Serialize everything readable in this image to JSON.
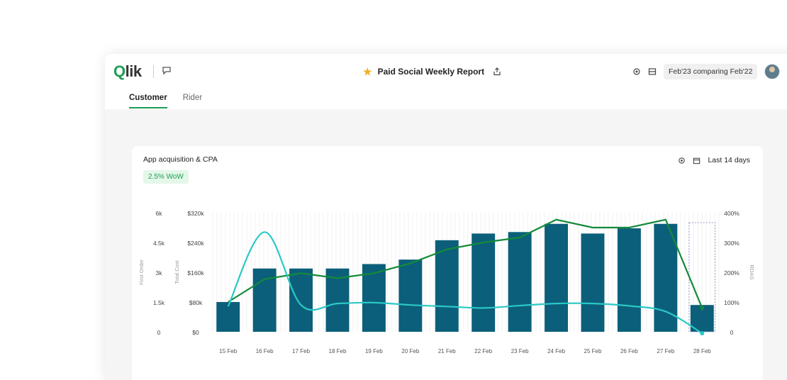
{
  "app": {
    "logo_text": "Qlik",
    "report_title": "Paid Social Weekly Report",
    "comparison": "Feb'23 comparing Feb'22",
    "tabs": [
      {
        "label": "Customer",
        "active": true
      },
      {
        "label": "Rider",
        "active": false
      }
    ]
  },
  "card": {
    "title": "App acquisition & CPA",
    "badge": "2.5% WoW",
    "range_label": "Last 14 days"
  },
  "colors": {
    "accent_green": "#1f9d55",
    "bar_teal": "#0c5f7a",
    "line_cyan": "#2ac8c6",
    "line_green": "#148a3a",
    "star": "#f2b01e"
  },
  "chart_data": {
    "type": "bar",
    "categories": [
      "15 Feb",
      "16 Feb",
      "17 Feb",
      "18 Feb",
      "19 Feb",
      "20 Feb",
      "21 Feb",
      "22 Feb",
      "23 Feb",
      "24 Feb",
      "25 Feb",
      "26 Feb",
      "27 Feb",
      "28 Feb"
    ],
    "left_axis_1": {
      "title": "First Order",
      "ticks": [
        "6k",
        "4.5k",
        "3k",
        "1.5k",
        "0"
      ]
    },
    "left_axis_2": {
      "title": "Total Cost",
      "ticks": [
        "$320k",
        "$240k",
        "$160k",
        "$80k",
        "$0"
      ],
      "ylim": [
        0,
        320000
      ]
    },
    "right_axis": {
      "title": "ROAS",
      "ticks": [
        "400%",
        "300%",
        "200%",
        "100%",
        "0"
      ],
      "ylim": [
        0,
        400
      ]
    },
    "bars": {
      "name": "Total Cost",
      "values": [
        80000,
        170000,
        170000,
        170000,
        182000,
        194000,
        246000,
        264000,
        268000,
        290000,
        264000,
        278000,
        290000,
        72000
      ]
    },
    "series": [
      {
        "name": "First Order",
        "axis": "left_axis_1",
        "values": [
          1500,
          2650,
          2950,
          2700,
          2950,
          3450,
          4150,
          4500,
          4750,
          5650,
          5250,
          5250,
          5650,
          1200
        ]
      },
      {
        "name": "ROAS",
        "axis": "right_axis",
        "values": [
          85,
          335,
          90,
          95,
          98,
          90,
          85,
          80,
          88,
          95,
          95,
          87,
          68,
          -5
        ]
      }
    ],
    "highlighted_category": "28 Feb"
  }
}
